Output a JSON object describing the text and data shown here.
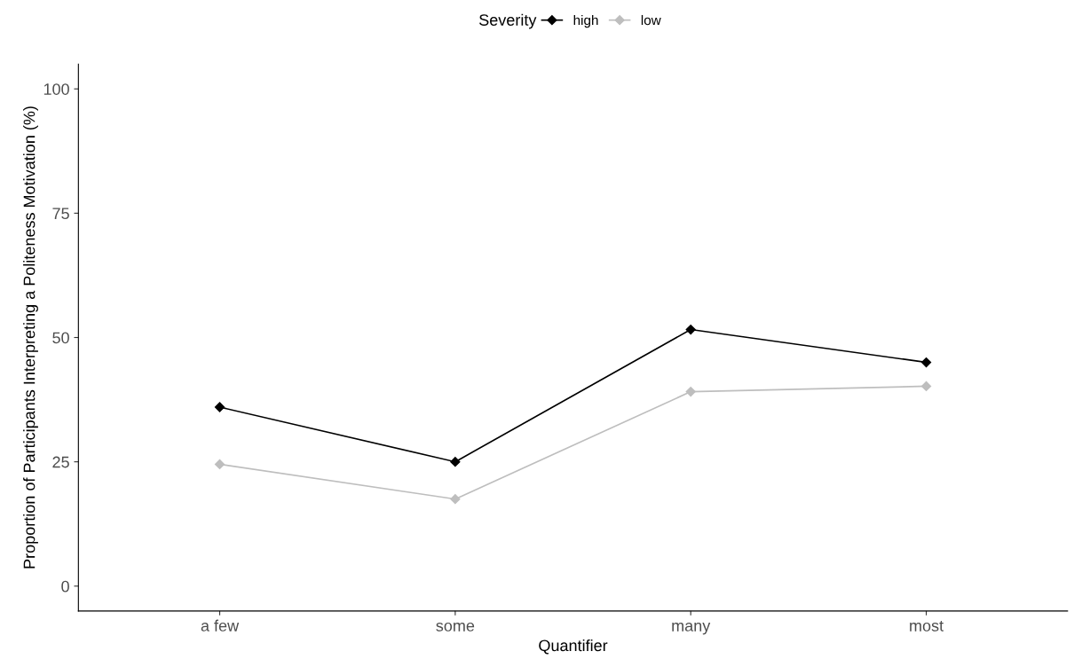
{
  "chart_data": {
    "type": "line",
    "xlabel": "Quantifier",
    "ylabel": "Proportion of Participants Interpreting a Politeness Motivation (%)",
    "legend_title": "Severity",
    "legend": "top",
    "categories": [
      "a few",
      "some",
      "many",
      "most"
    ],
    "series": [
      {
        "name": "high",
        "color": "#000000",
        "values": [
          36,
          25,
          51.6,
          45
        ]
      },
      {
        "name": "low",
        "color": "#bebebe",
        "values": [
          24.5,
          17.5,
          39.1,
          40.2
        ]
      }
    ],
    "ylim": [
      -5,
      105
    ],
    "yticks": [
      0,
      25,
      50,
      75,
      100
    ],
    "grid": false,
    "marker": "diamond",
    "line_style": "solid"
  }
}
